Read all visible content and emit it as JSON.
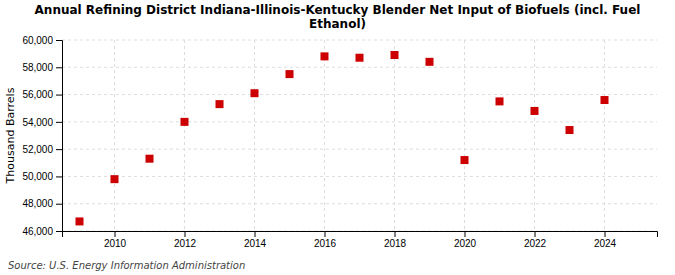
{
  "chart_data": {
    "type": "scatter",
    "title": "Annual Refining District Indiana-Illinois-Kentucky Blender Net Input of Biofuels (incl. Fuel\nEthanol)",
    "y_label": "Thousand Barrels",
    "annotations": [
      "Source: U.S. Energy Information Administration"
    ],
    "x": [
      2009,
      2010,
      2011,
      2012,
      2013,
      2014,
      2015,
      2016,
      2017,
      2018,
      2019,
      2020,
      2021,
      2022,
      2023,
      2024
    ],
    "values": [
      46700,
      49800,
      51300,
      54000,
      55300,
      56100,
      57500,
      58800,
      58700,
      58900,
      58400,
      51200,
      55500,
      54800,
      53400,
      55600
    ],
    "color": "#cc0000",
    "marker": "square",
    "xlim": [
      2008.5,
      2025.5
    ],
    "ylim": [
      46000,
      60000
    ],
    "xticks": [
      2010,
      2012,
      2014,
      2016,
      2018,
      2020,
      2022,
      2024
    ],
    "yticks": [
      {
        "value": 46000,
        "label": "46,000"
      },
      {
        "value": 48000,
        "label": "48,000"
      },
      {
        "value": 50000,
        "label": "50,000"
      },
      {
        "value": 52000,
        "label": "52,000"
      },
      {
        "value": 54000,
        "label": "54,000"
      },
      {
        "value": 56000,
        "label": "56,000"
      },
      {
        "value": 58000,
        "label": "58,000"
      },
      {
        "value": 60000,
        "label": "60,000"
      }
    ],
    "grid": true
  }
}
